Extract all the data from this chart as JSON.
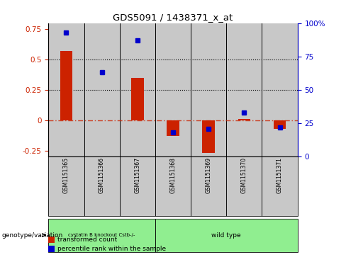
{
  "title": "GDS5091 / 1438371_x_at",
  "samples": [
    "GSM1151365",
    "GSM1151366",
    "GSM1151367",
    "GSM1151368",
    "GSM1151369",
    "GSM1151370",
    "GSM1151371"
  ],
  "transformed_count": [
    0.57,
    0.0,
    0.35,
    -0.13,
    -0.27,
    0.01,
    -0.07
  ],
  "percentile_rank": [
    93,
    63,
    87,
    18,
    21,
    33,
    22
  ],
  "bar_color": "#cc2200",
  "dot_color": "#0000cc",
  "ylim_left": [
    -0.3,
    0.8
  ],
  "ylim_right": [
    0,
    100
  ],
  "yticks_left": [
    -0.25,
    0.0,
    0.25,
    0.5,
    0.75
  ],
  "ytick_labels_left": [
    "-0.25",
    "0",
    "0.25",
    "0.5",
    "0.75"
  ],
  "yticks_right": [
    0,
    25,
    50,
    75,
    100
  ],
  "ytick_labels_right": [
    "0",
    "25",
    "50",
    "75",
    "100%"
  ],
  "hline_y": [
    0.25,
    0.5
  ],
  "zero_line_y": 0.0,
  "group1_indices": [
    0,
    1,
    2
  ],
  "group2_indices": [
    3,
    4,
    5,
    6
  ],
  "group1_label": "cystatin B knockout Cstb-/-",
  "group2_label": "wild type",
  "genotype_label": "genotype/variation",
  "legend_red_label": "transformed count",
  "legend_blue_label": "percentile rank within the sample",
  "bar_width": 0.35,
  "sample_bg_color": "#c8c8c8",
  "green_color": "#90EE90",
  "background_color": "#ffffff"
}
